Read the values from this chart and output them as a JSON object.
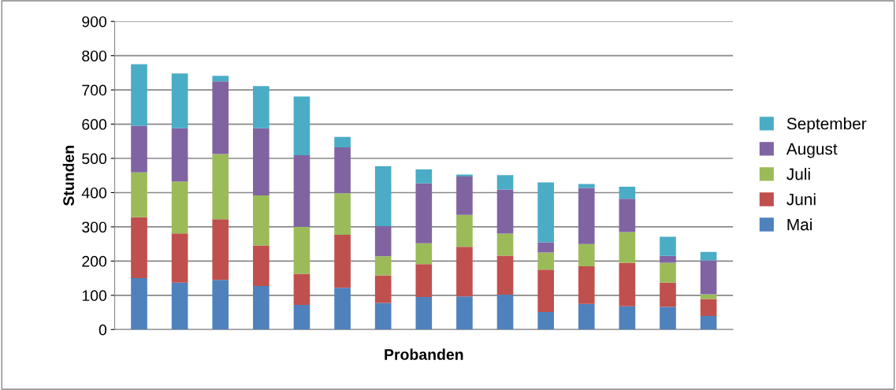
{
  "chart_data": {
    "type": "bar",
    "stacked": true,
    "xlabel": "Probanden",
    "ylabel": "Stunden",
    "categories": [
      null,
      null,
      null,
      null,
      null,
      null,
      null,
      null,
      null,
      null,
      null,
      null,
      null,
      null,
      null
    ],
    "ylim": [
      0,
      900
    ],
    "yticks": [
      0,
      100,
      200,
      300,
      400,
      500,
      600,
      700,
      800,
      900
    ],
    "grid": "y",
    "legend": "right",
    "series": [
      {
        "name": "Mai",
        "color": "#4f81bd",
        "values": [
          150,
          137,
          145,
          127,
          72,
          122,
          78,
          95,
          97,
          102,
          51,
          75,
          68,
          66,
          40
        ]
      },
      {
        "name": "Juni",
        "color": "#c0504d",
        "values": [
          178,
          144,
          177,
          119,
          91,
          155,
          80,
          96,
          145,
          114,
          124,
          110,
          127,
          71,
          49
        ]
      },
      {
        "name": "Juli",
        "color": "#9bbb59",
        "values": [
          131,
          151,
          191,
          146,
          137,
          121,
          56,
          61,
          93,
          64,
          50,
          65,
          90,
          58,
          14
        ]
      },
      {
        "name": "August",
        "color": "#8064a2",
        "values": [
          136,
          156,
          212,
          196,
          209,
          134,
          88,
          175,
          112,
          129,
          30,
          163,
          97,
          20,
          99
        ]
      },
      {
        "name": "September",
        "color": "#4bacc6",
        "values": [
          180,
          160,
          16,
          123,
          172,
          31,
          175,
          41,
          6,
          42,
          175,
          12,
          35,
          56,
          25
        ]
      }
    ]
  }
}
